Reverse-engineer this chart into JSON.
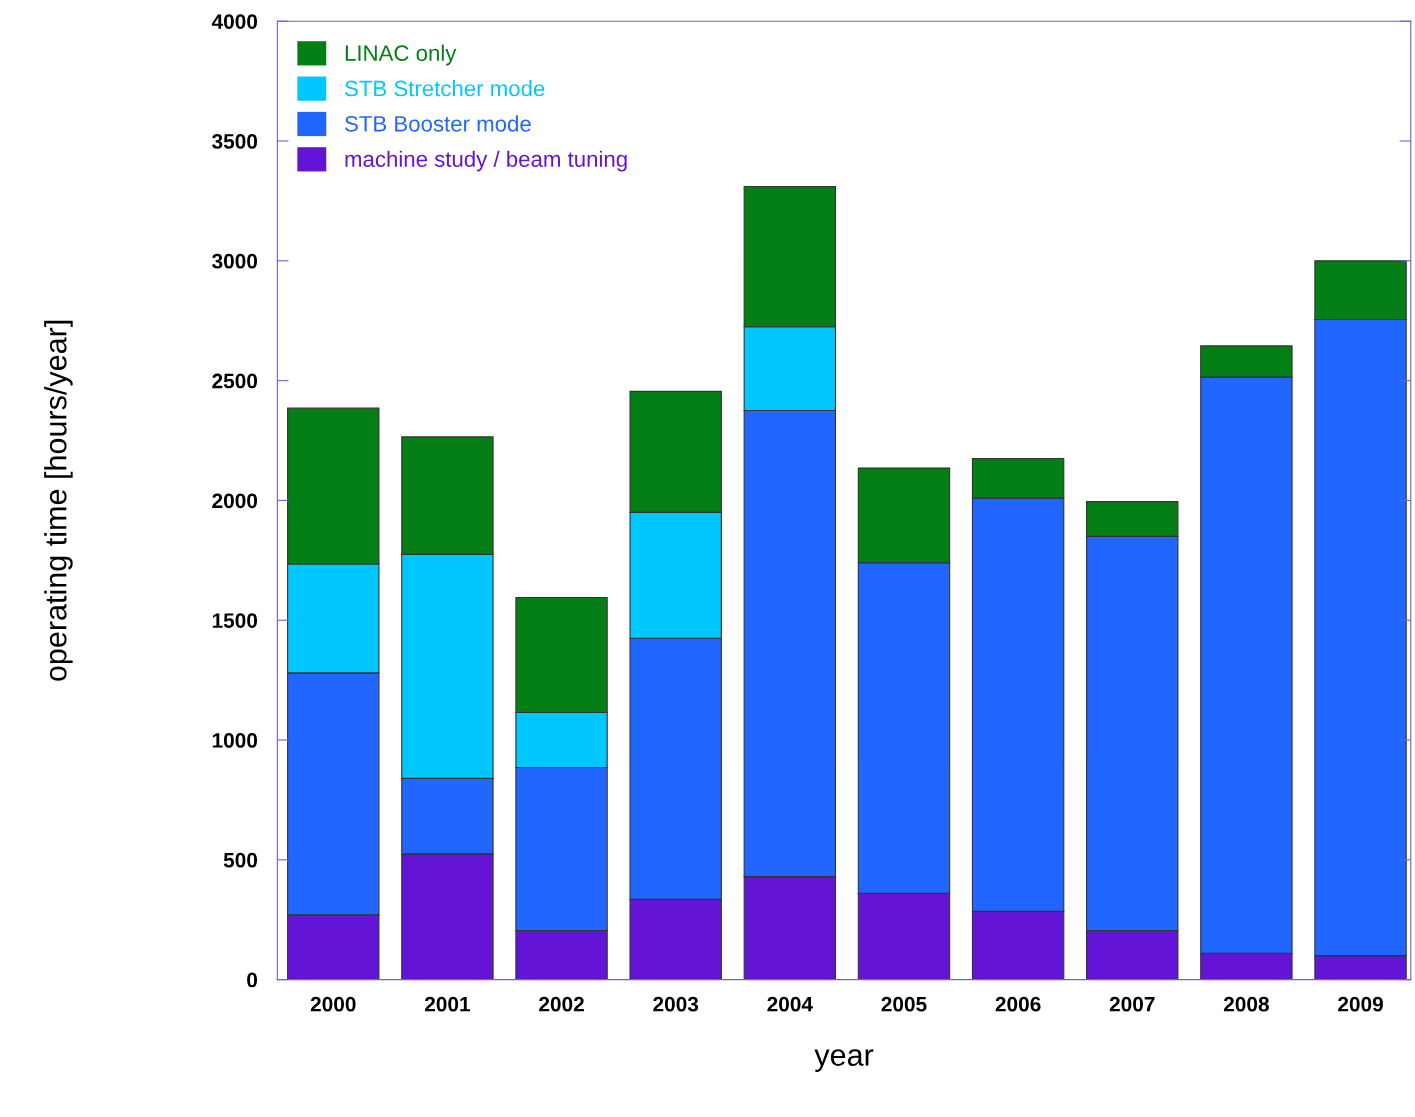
{
  "chart_data": {
    "type": "bar",
    "stacked": true,
    "xlabel": "year",
    "ylabel": "operating time [hours/year]",
    "categories": [
      "2000",
      "2001",
      "2002",
      "2003",
      "2004",
      "2005",
      "2006",
      "2007",
      "2008",
      "2009"
    ],
    "series": [
      {
        "name": "machine study / beam tuning",
        "color": "#6414d6",
        "values": [
          270,
          525,
          205,
          335,
          430,
          360,
          285,
          205,
          110,
          100
        ]
      },
      {
        "name": "STB Booster mode",
        "color": "#2066ff",
        "values": [
          1010,
          315,
          680,
          1090,
          1945,
          1380,
          1725,
          1645,
          2405,
          2655
        ]
      },
      {
        "name": "STB Stretcher mode",
        "color": "#00c8ff",
        "values": [
          455,
          935,
          230,
          525,
          350,
          0,
          0,
          0,
          0,
          0
        ]
      },
      {
        "name": "LINAC only",
        "color": "#037f16",
        "values": [
          650,
          490,
          480,
          505,
          585,
          395,
          165,
          145,
          130,
          245
        ]
      }
    ],
    "ylim": [
      0,
      4000
    ],
    "yticks": [
      0,
      500,
      1000,
      1500,
      2000,
      2500,
      3000,
      3500,
      4000
    ],
    "grid": false,
    "legend": "top left"
  }
}
